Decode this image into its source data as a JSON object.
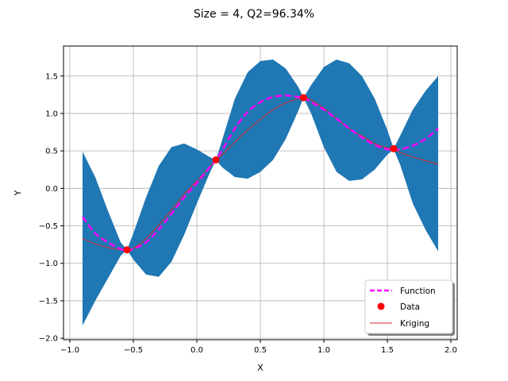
{
  "chart_data": {
    "type": "line",
    "title": "Size = 4, Q2=96.34%",
    "xlabel": "X",
    "ylabel": "Y",
    "xlim": [
      -1.05,
      2.05
    ],
    "ylim": [
      -2.02,
      1.9
    ],
    "xticks": [
      -1.0,
      -0.5,
      0.0,
      0.5,
      1.0,
      1.5,
      2.0
    ],
    "xtick_labels": [
      "−1.0",
      "−0.5",
      "0.0",
      "0.5",
      "1.0",
      "1.5",
      "2.0"
    ],
    "yticks": [
      -2.0,
      -1.5,
      -1.0,
      -0.5,
      0.0,
      0.5,
      1.0,
      1.5
    ],
    "ytick_labels": [
      "−2.0",
      "−1.5",
      "−1.0",
      "−0.5",
      "0.0",
      "0.5",
      "1.0",
      "1.5"
    ],
    "grid": true,
    "legend_position": "lower-right",
    "x": [
      -0.9,
      -0.8,
      -0.7,
      -0.6,
      -0.55,
      -0.5,
      -0.4,
      -0.3,
      -0.2,
      -0.1,
      0.0,
      0.1,
      0.15,
      0.2,
      0.3,
      0.4,
      0.5,
      0.6,
      0.7,
      0.8,
      0.84,
      0.9,
      1.0,
      1.1,
      1.2,
      1.3,
      1.4,
      1.5,
      1.55,
      1.6,
      1.7,
      1.8,
      1.9
    ],
    "series": [
      {
        "name": "Function",
        "kind": "line",
        "color": "#ff00ff",
        "values": [
          -0.38,
          -0.6,
          -0.72,
          -0.81,
          -0.82,
          -0.81,
          -0.72,
          -0.55,
          -0.34,
          -0.12,
          0.07,
          0.28,
          0.38,
          0.51,
          0.8,
          1.02,
          1.15,
          1.22,
          1.24,
          1.22,
          1.21,
          1.15,
          1.05,
          0.93,
          0.8,
          0.68,
          0.58,
          0.52,
          0.52,
          0.52,
          0.57,
          0.66,
          0.8
        ]
      },
      {
        "name": "Data",
        "kind": "scatter",
        "color": "#ff0000",
        "x": [
          -0.55,
          0.15,
          0.84,
          1.55
        ],
        "values": [
          -0.82,
          0.38,
          1.21,
          0.53
        ]
      },
      {
        "name": "Kriging",
        "kind": "line",
        "color": "#d62728",
        "values": [
          -0.67,
          -0.74,
          -0.79,
          -0.82,
          -0.82,
          -0.8,
          -0.67,
          -0.49,
          -0.29,
          -0.08,
          0.1,
          0.28,
          0.38,
          0.45,
          0.62,
          0.78,
          0.92,
          1.05,
          1.14,
          1.2,
          1.21,
          1.18,
          1.07,
          0.93,
          0.8,
          0.7,
          0.6,
          0.54,
          0.52,
          0.48,
          0.42,
          0.37,
          0.32
        ]
      }
    ],
    "confidence_band": {
      "color": "#1f77b4",
      "lower": [
        -1.83,
        -1.5,
        -1.2,
        -0.9,
        -0.82,
        -0.95,
        -1.15,
        -1.18,
        -0.98,
        -0.62,
        -0.2,
        0.2,
        0.38,
        0.28,
        0.15,
        0.13,
        0.22,
        0.38,
        0.66,
        1.04,
        1.21,
        1.0,
        0.55,
        0.22,
        0.1,
        0.12,
        0.25,
        0.45,
        0.52,
        0.32,
        -0.2,
        -0.55,
        -0.84
      ],
      "upper": [
        0.49,
        0.15,
        -0.3,
        -0.72,
        -0.82,
        -0.6,
        -0.12,
        0.3,
        0.55,
        0.6,
        0.52,
        0.42,
        0.38,
        0.65,
        1.2,
        1.55,
        1.7,
        1.72,
        1.6,
        1.35,
        1.21,
        1.38,
        1.62,
        1.72,
        1.67,
        1.5,
        1.2,
        0.78,
        0.53,
        0.7,
        1.05,
        1.3,
        1.5
      ]
    }
  }
}
